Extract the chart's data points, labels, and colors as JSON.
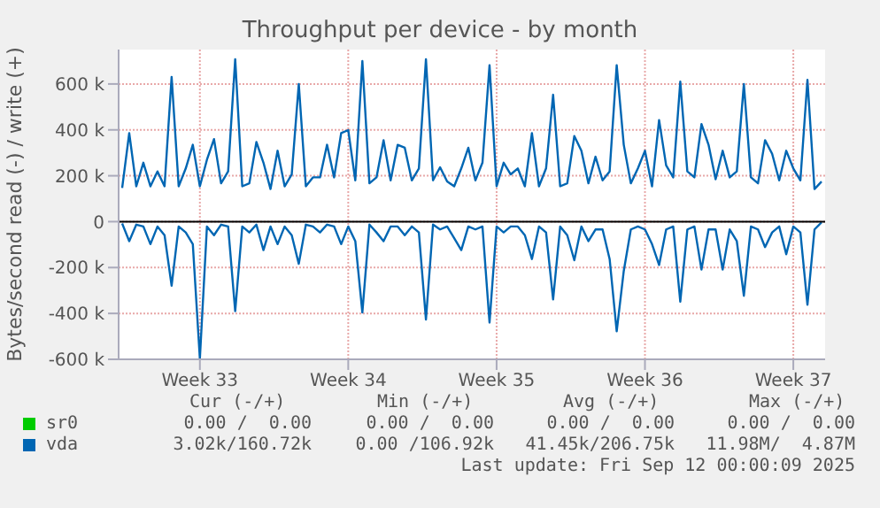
{
  "chart_data": {
    "type": "line",
    "title": "Throughput per device - by month",
    "ylabel": "Bytes/second read (-) / write (+)",
    "categories": [
      null,
      null,
      null,
      null,
      null,
      null,
      null,
      null,
      null,
      null,
      null,
      "Week 33",
      null,
      null,
      null,
      null,
      null,
      null,
      null,
      null,
      null,
      null,
      null,
      null,
      null,
      null,
      null,
      null,
      null,
      null,
      null,
      null,
      "Week 34",
      null,
      null,
      null,
      null,
      null,
      null,
      null,
      null,
      null,
      null,
      null,
      null,
      null,
      null,
      null,
      null,
      null,
      null,
      null,
      null,
      "Week 35",
      null,
      null,
      null,
      null,
      null,
      null,
      null,
      null,
      null,
      null,
      null,
      null,
      null,
      null,
      null,
      null,
      null,
      null,
      null,
      null,
      "Week 36",
      null,
      null,
      null,
      null,
      null,
      null,
      null,
      null,
      null,
      null,
      null,
      null,
      null,
      null,
      null,
      null,
      null,
      null,
      null,
      null,
      "Week 37",
      null,
      null,
      null,
      null
    ],
    "ylim": [
      -600000,
      750000
    ],
    "yticks": [
      {
        "value": -600000,
        "label": "-600 k"
      },
      {
        "value": -400000,
        "label": "-400 k"
      },
      {
        "value": -200000,
        "label": "-200 k"
      },
      0,
      {
        "value": 200000,
        "label": "200 k"
      },
      {
        "value": 400000,
        "label": "400 k"
      },
      {
        "value": 600000,
        "label": "600 k"
      }
    ],
    "grid": true,
    "legend": "bottom",
    "marker": "none",
    "ref_lines": [
      {
        "axis": "y",
        "value": 0,
        "color": "#000000"
      }
    ],
    "series": [
      {
        "name": "sr0",
        "color": "#00cc00",
        "values": [
          null,
          null,
          null,
          null,
          null,
          null,
          null,
          null,
          null,
          null,
          null,
          null,
          null,
          null,
          null,
          null,
          null,
          null,
          null,
          null,
          null,
          null,
          null,
          null,
          null,
          null,
          null,
          null,
          null,
          null,
          null,
          null,
          null,
          null,
          null,
          null,
          null,
          null,
          null,
          null,
          null,
          null,
          null,
          null,
          null,
          null,
          null,
          null,
          null,
          null,
          null,
          null,
          null,
          null,
          null,
          null,
          null,
          null,
          null,
          null,
          null,
          null,
          null,
          null,
          null,
          null,
          null,
          null,
          null,
          null,
          null,
          null,
          null,
          null,
          null,
          null,
          null,
          null,
          null,
          null,
          null,
          null,
          null,
          null,
          null,
          null,
          null,
          null,
          null,
          null,
          null,
          null,
          null,
          null,
          null,
          null,
          null,
          null,
          null,
          null
        ]
      },
      {
        "name": "vda",
        "color": "#0066b3",
        "values": [
          147000,
          386000,
          154000,
          257000,
          154000,
          219000,
          154000,
          631000,
          154000,
          232000,
          335000,
          154000,
          270000,
          360000,
          167000,
          219000,
          708000,
          154000,
          167000,
          347000,
          257000,
          142000,
          309000,
          154000,
          206000,
          600000,
          154000,
          193000,
          193000,
          335000,
          193000,
          386000,
          399000,
          180000,
          700000,
          167000,
          193000,
          355000,
          180000,
          335000,
          322000,
          180000,
          232000,
          708000,
          180000,
          237000,
          175000,
          154000,
          232000,
          322000,
          180000,
          257000,
          682000,
          154000,
          257000,
          206000,
          232000,
          154000,
          386000,
          154000,
          232000,
          553000,
          154000,
          167000,
          373000,
          309000,
          167000,
          283000,
          180000,
          219000,
          682000,
          335000,
          167000,
          232000,
          309000,
          154000,
          443000,
          245000,
          193000,
          610000,
          219000,
          193000,
          425000,
          335000,
          185000,
          309000,
          193000,
          219000,
          600000,
          193000,
          167000,
          355000,
          296000,
          180000,
          309000,
          232000,
          180000,
          618000,
          142000,
          175000
        ]
      },
      {
        "color": "#0066b3",
        "values": [
          -8000,
          -85000,
          -13000,
          -21000,
          -98000,
          -21000,
          -59000,
          -279000,
          -21000,
          -47000,
          -98000,
          -597000,
          -21000,
          -59000,
          -13000,
          -21000,
          -390000,
          -21000,
          -47000,
          -13000,
          -124000,
          -21000,
          -98000,
          -21000,
          -59000,
          -184000,
          -13000,
          -21000,
          -47000,
          -13000,
          -21000,
          -98000,
          -21000,
          -85000,
          -396000,
          -13000,
          -47000,
          -85000,
          -21000,
          -21000,
          -59000,
          -21000,
          -47000,
          -427000,
          -13000,
          -34000,
          -21000,
          -72000,
          -124000,
          -21000,
          -34000,
          -21000,
          -440000,
          -21000,
          -47000,
          -21000,
          -21000,
          -59000,
          -163000,
          -21000,
          -47000,
          -339000,
          -21000,
          -59000,
          -168000,
          -21000,
          -85000,
          -34000,
          -34000,
          -163000,
          -478000,
          -215000,
          -34000,
          -21000,
          -34000,
          -98000,
          -189000,
          -34000,
          -21000,
          -349000,
          -34000,
          -21000,
          -209000,
          -34000,
          -34000,
          -209000,
          -34000,
          -85000,
          -323000,
          -21000,
          -34000,
          -111000,
          -47000,
          -21000,
          -142000,
          -21000,
          -47000,
          -362000,
          -34000,
          -3000
        ]
      }
    ],
    "annotations": [
      "Cur (-/+)",
      "Min (-/+)",
      "Avg (-/+)",
      "Max (-/+)",
      "0.00 /  0.00",
      "0.00 /  0.00",
      "0.00 /  0.00",
      "0.00 /  0.00",
      "3.02k/160.72k",
      "0.00 /106.92k",
      "41.45k/206.75k",
      "11.98M/  4.87M",
      "Last update: Fri Sep 12 00:00:09 2025"
    ]
  }
}
